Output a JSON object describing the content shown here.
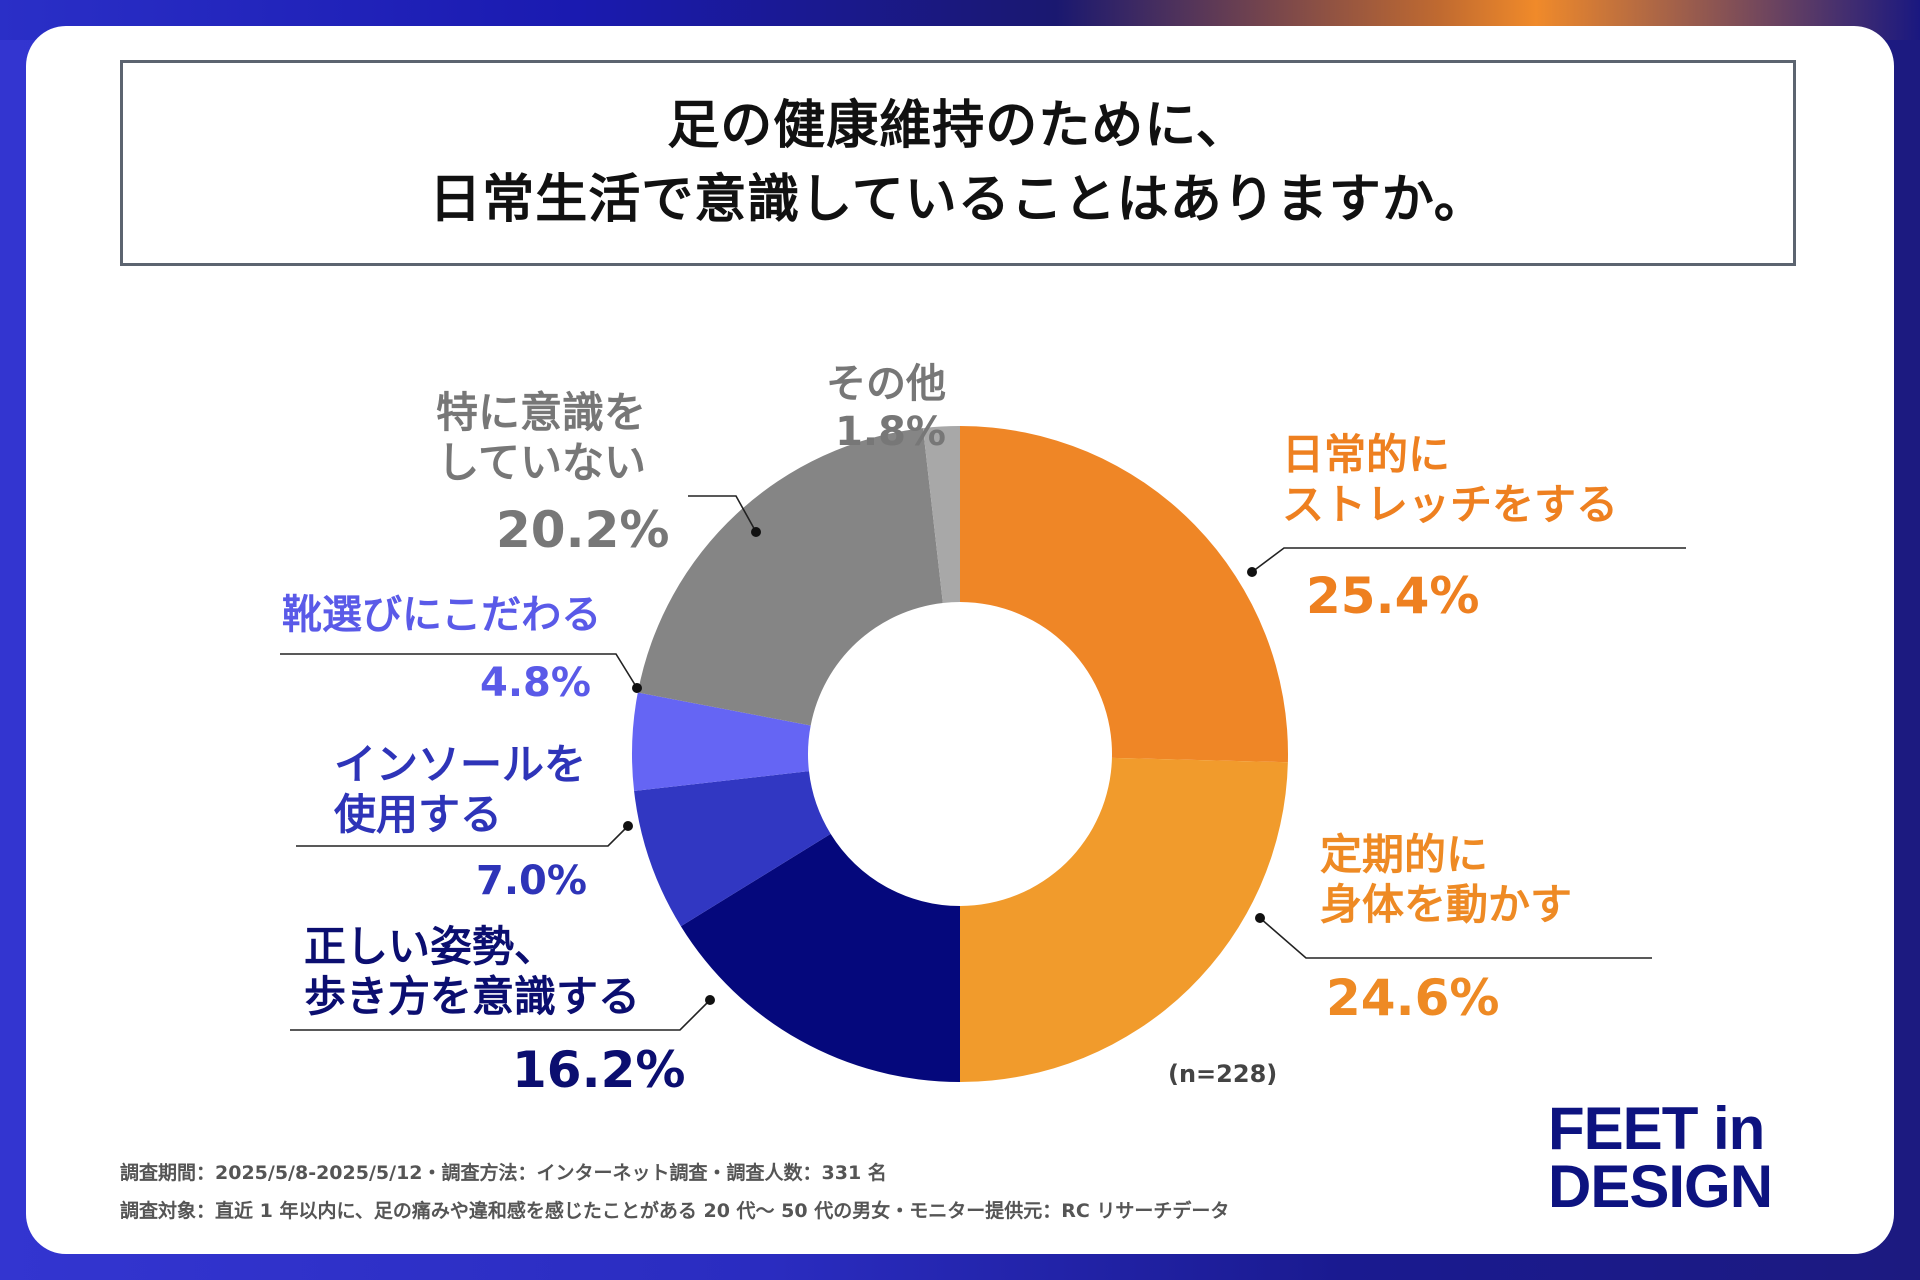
{
  "title": {
    "line1": "足の健康維持のために、",
    "line2": "日常生活で意識していることはありますか。"
  },
  "chart_data": {
    "type": "pie",
    "variant": "donut",
    "categories": [
      "日常的にストレッチをする",
      "定期的に身体を動かす",
      "正しい姿勢、歩き方を意識する",
      "インソールを使用する",
      "靴選びにこだわる",
      "特に意識をしていない",
      "その他"
    ],
    "values": [
      25.4,
      24.6,
      16.2,
      7.0,
      4.8,
      20.2,
      1.8
    ],
    "unit": "%",
    "colors": [
      "#ef8626",
      "#f19b2c",
      "#05087c",
      "#3137c2",
      "#6565f4",
      "#858585",
      "#a8a8a8"
    ],
    "sample_size": "(n=228)"
  },
  "labels": {
    "stretch": {
      "name_line1": "日常的に",
      "name_line2": "ストレッチをする",
      "value": "25.4%"
    },
    "exercise": {
      "name_line1": "定期的に",
      "name_line2": "身体を動かす",
      "value": "24.6%"
    },
    "posture": {
      "name_line1": "正しい姿勢、",
      "name_line2": "歩き方を意識する",
      "value": "16.2%"
    },
    "insole": {
      "name_line1": "インソールを",
      "name_line2": "使用する",
      "value": "7.0%"
    },
    "shoes": {
      "name_line1": "靴選びにこだわる",
      "value": "4.8%"
    },
    "none": {
      "name_line1": "特に意識を",
      "name_line2": "していない",
      "value": "20.2%"
    },
    "other": {
      "name_line1": "その他",
      "value": "1.8%"
    }
  },
  "footer": {
    "line1": "調査期間：2025/5/8-2025/5/12・調査方法：インターネット調査・調査人数：331 名",
    "line2": "調査対象：直近 1 年以内に、足の痛みや違和感を感じたことがある 20 代〜 50 代の男女・モニター提供元：RC リサーチデータ"
  },
  "logo": {
    "line1": "FEET in",
    "line2": "DESIGN"
  }
}
